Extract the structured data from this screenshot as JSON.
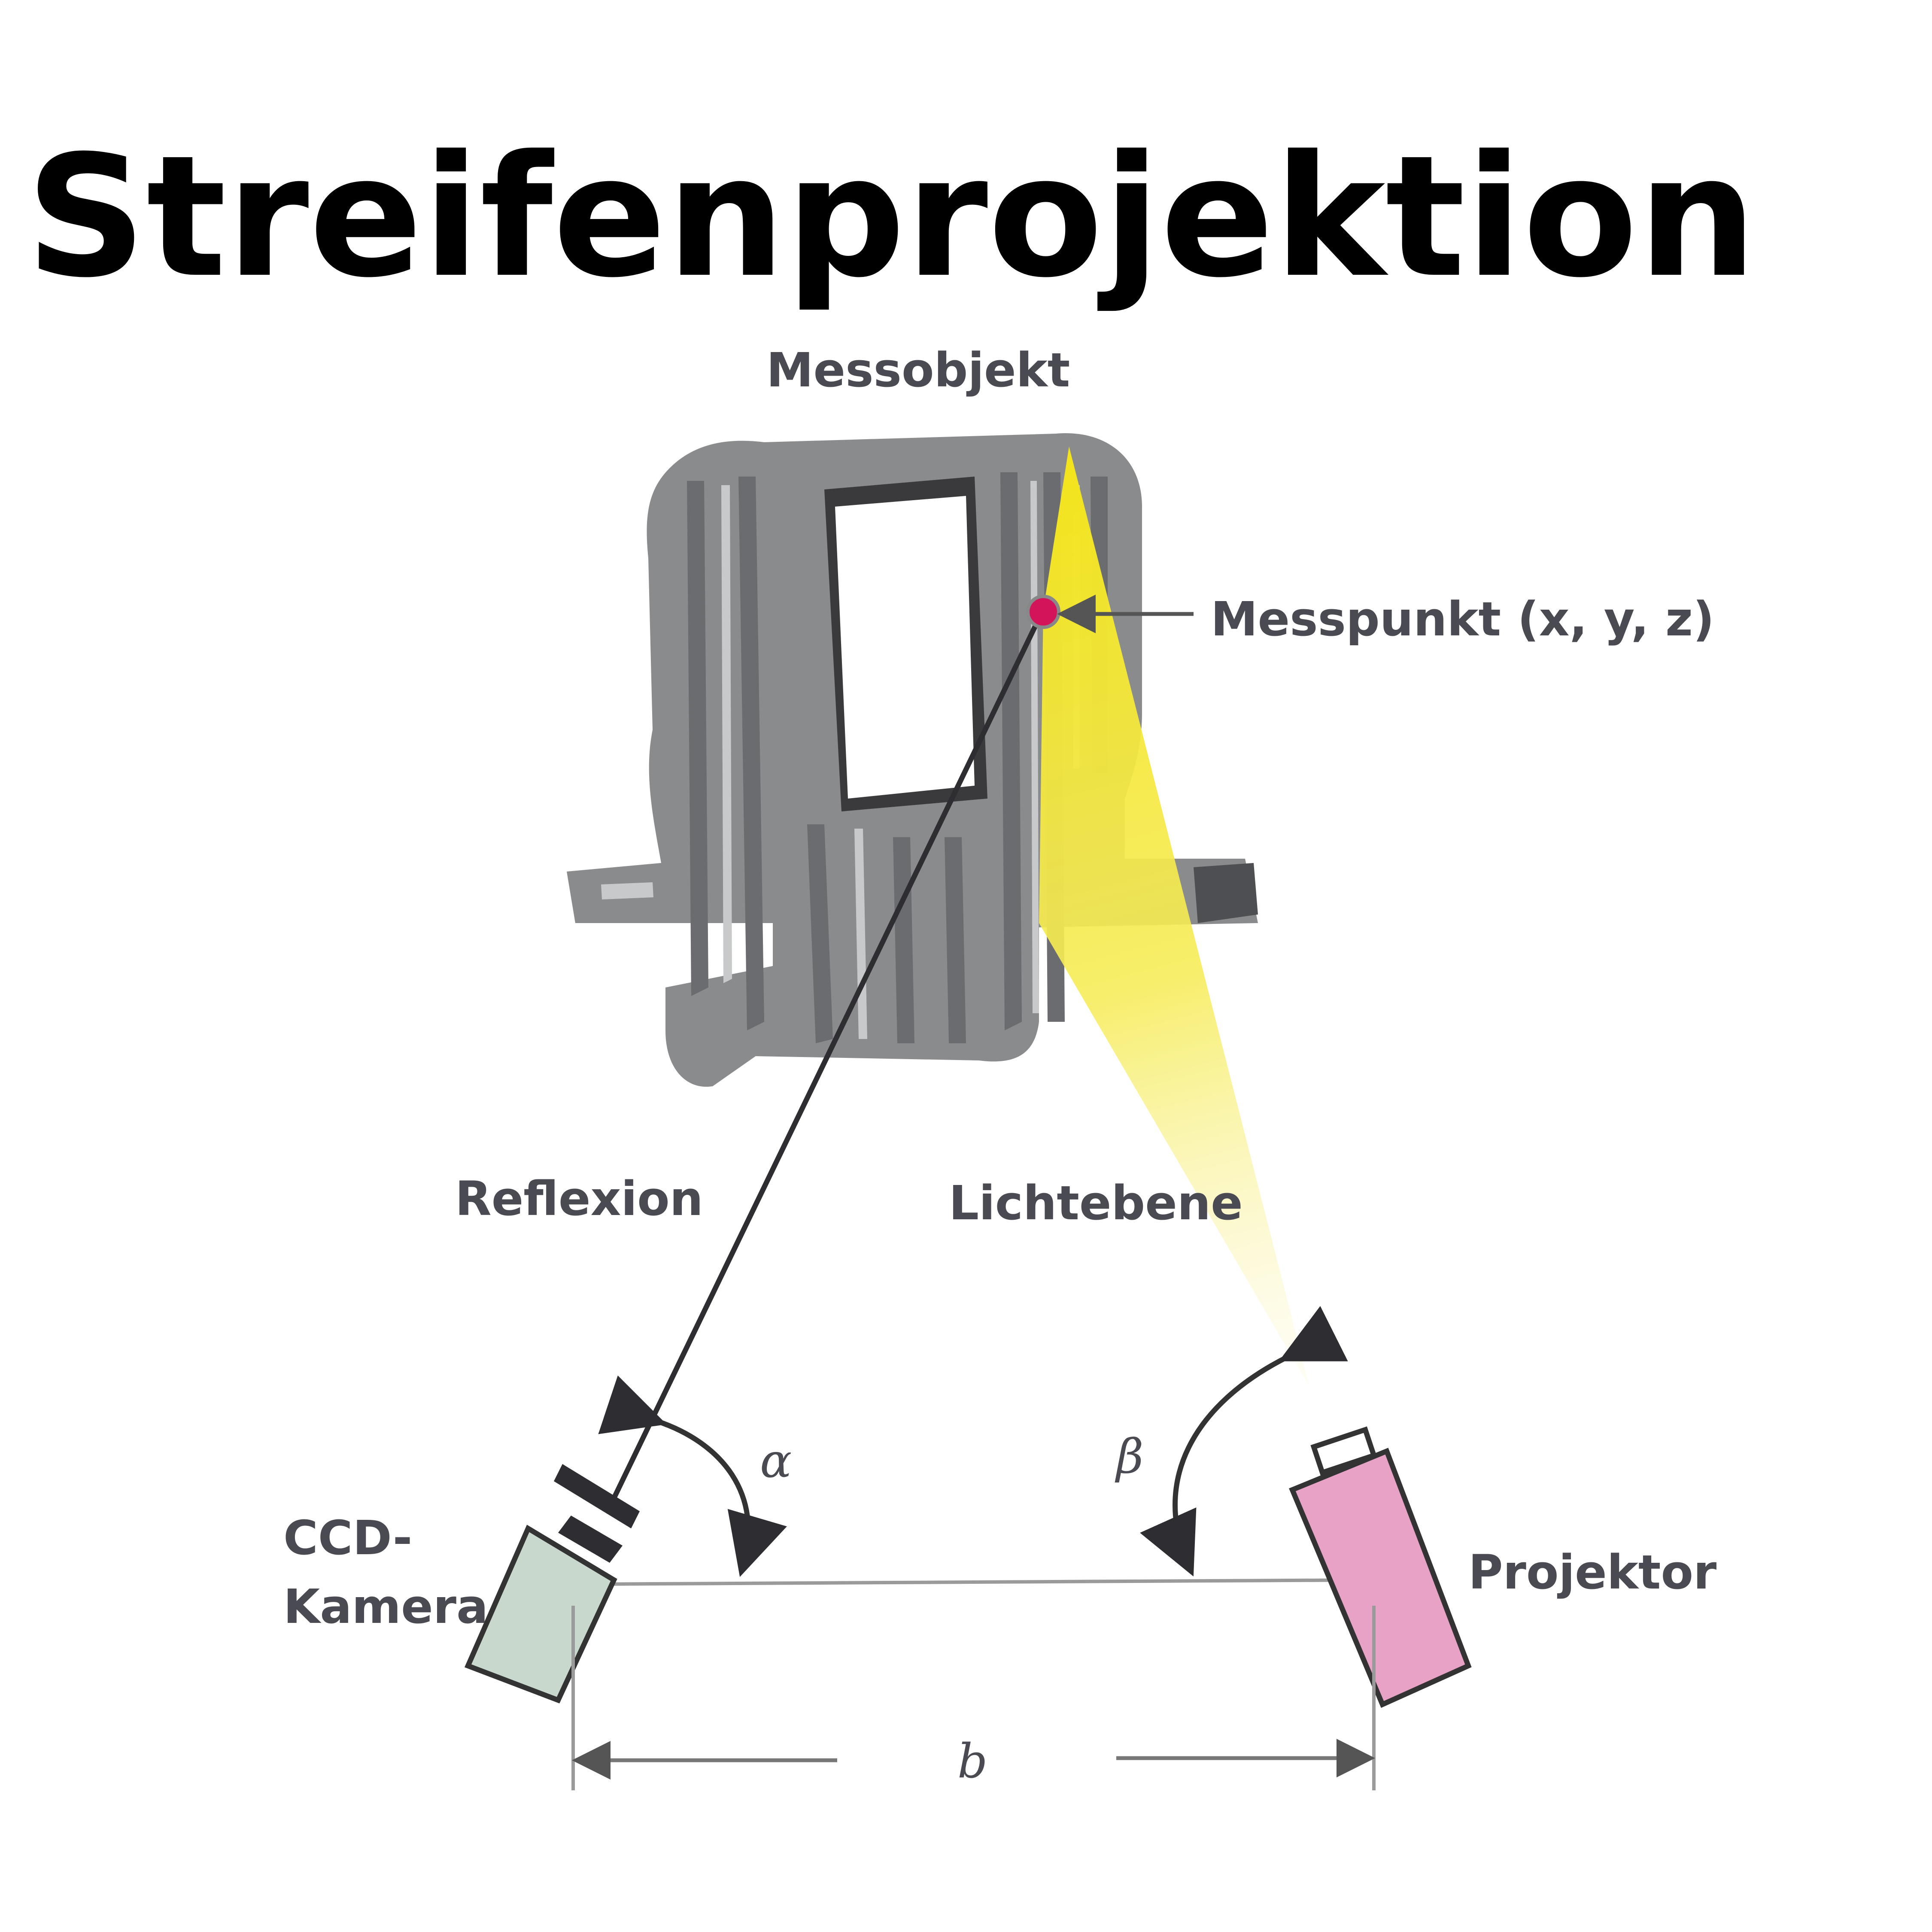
{
  "title": "Streifenprojektion",
  "labels": {
    "messobjekt": "Messobjekt",
    "messpunkt": "Messpunkt (x, y, z)",
    "reflexion": "Reflexion",
    "lichtebene": "Lichtebene",
    "alpha": "α",
    "beta": "β",
    "ccd_line1": "CCD-",
    "ccd_line2": "Kamera",
    "projektor": "Projektor",
    "baseline": "b"
  },
  "colors": {
    "title": "#000000",
    "label": "#4a4a52",
    "light_plane": "#f5ea3a",
    "measurement_point": "#d4145a",
    "camera": "#c9d8cd",
    "projector": "#e7a2c6",
    "object_gray": "#8a8b8d",
    "line": "#2e2e32"
  }
}
